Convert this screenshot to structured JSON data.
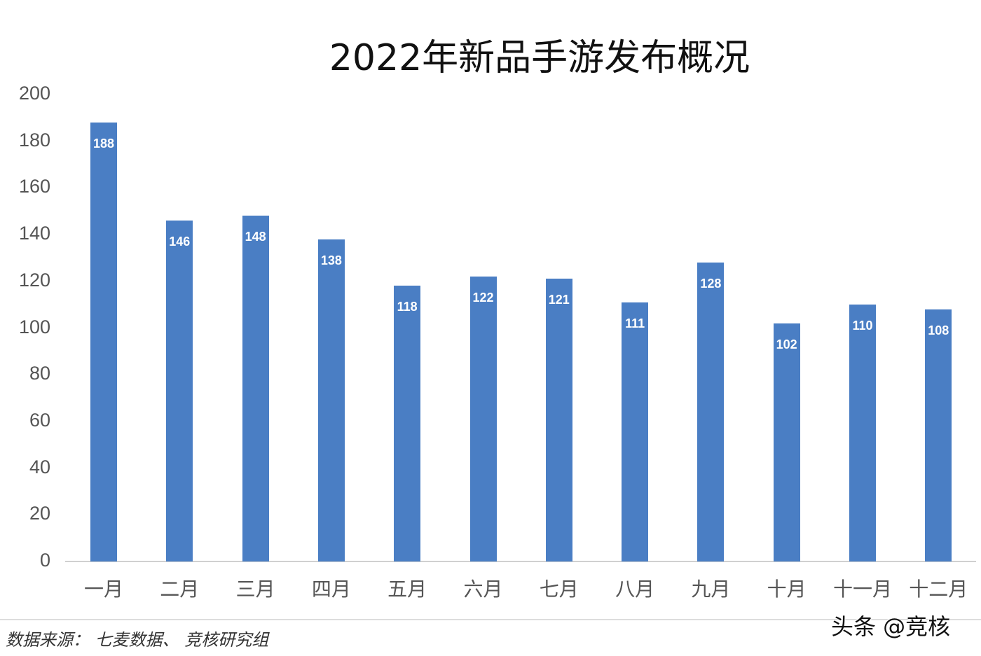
{
  "title": "2022年新品手游发布概况",
  "source": "数据来源： 七麦数据、 竞核研究组",
  "watermark": "头条 @竞核",
  "colors": {
    "bar": "#4a7ec4",
    "label": "#ffffff",
    "axis": "#d0d0d0"
  },
  "y_ticks": [
    "200",
    "180",
    "160",
    "140",
    "120",
    "100",
    "80",
    "60",
    "40",
    "20",
    "0"
  ],
  "chart_data": {
    "type": "bar",
    "title": "2022年新品手游发布概况",
    "categories": [
      "一月",
      "二月",
      "三月",
      "四月",
      "五月",
      "六月",
      "七月",
      "八月",
      "九月",
      "十月",
      "十一月",
      "十二月"
    ],
    "values": [
      188,
      146,
      148,
      138,
      118,
      122,
      121,
      111,
      128,
      102,
      110,
      108
    ],
    "xlabel": "",
    "ylabel": "",
    "ylim": [
      0,
      200
    ],
    "yticks": [
      0,
      20,
      40,
      60,
      80,
      100,
      120,
      140,
      160,
      180,
      200
    ],
    "grid": false,
    "legend": null,
    "data_labels": true
  }
}
